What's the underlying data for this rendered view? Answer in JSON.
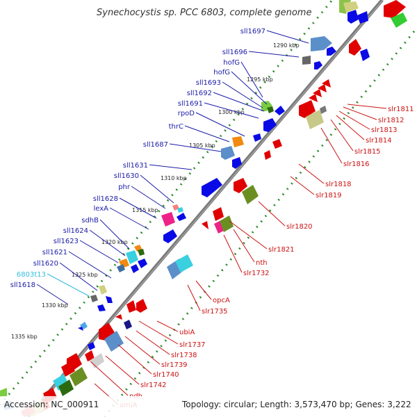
{
  "title": "Synechocystis sp. PCC 6803, complete genome",
  "footer": {
    "accession": "Accession: NC_000911",
    "topology": "Topology: circular; Length: 3,573,470 bp; Genes: 3,222"
  },
  "colors": {
    "backbone": "#777777",
    "forward": "#e00000",
    "reverse": "#0a0ae6",
    "tick": "#2d8a2d",
    "label_forward": "#cc1111",
    "label_reverse": "#1a1aa8",
    "label_rna": "#33bbdd"
  },
  "kbp_markers": [
    "1290 kbp",
    "1295 kbp",
    "1300 kbp",
    "1305 kbp",
    "1310 kbp",
    "1315 kbp",
    "1320 kbp",
    "1325 kbp",
    "1330 kbp",
    "1335 kbp"
  ],
  "labels_upper": [
    "sll1697",
    "sll1696",
    "hofG",
    "hofG",
    "sll1693",
    "sll1692",
    "sll1691",
    "rpoD",
    "thrC",
    "sll1687",
    "sll1631",
    "sll1630",
    "phr",
    "sll1628",
    "lexA",
    "sdhB",
    "sll1624",
    "sll1623",
    "sll1621",
    "sll1620",
    "6803t13",
    "sll1618"
  ],
  "labels_lower": [
    "slr1811",
    "slr1812",
    "slr1813",
    "slr1814",
    "slr1815",
    "slr1816",
    "slr1818",
    "slr1819",
    "slr1820",
    "slr1821",
    "nth",
    "slr1732",
    "opcA",
    "slr1735",
    "ubiA",
    "slr1737",
    "slr1738",
    "slr1739",
    "slr1740",
    "slr1742",
    "ndh",
    "amiA"
  ]
}
